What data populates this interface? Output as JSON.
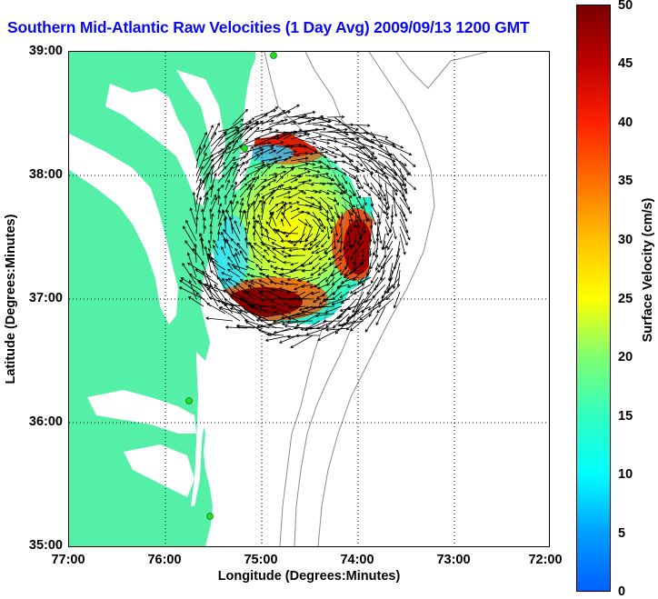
{
  "title": "Southern Mid-Atlantic Raw Velocities (1 Day Avg) 2009/09/13 1200 GMT",
  "xlabel": "Longitude (Degrees:Minutes)",
  "ylabel": "Latitude (Degrees:Minutes)",
  "colorbar": {
    "label": "Surface Velocity (cm/s)",
    "ticks": [
      "0",
      "5",
      "10",
      "15",
      "20",
      "25",
      "30",
      "35",
      "40",
      "45",
      "50"
    ],
    "range": [
      0,
      50
    ]
  },
  "x_ticks": [
    "77:00",
    "76:00",
    "75:00",
    "74:00",
    "73:00",
    "72:00"
  ],
  "y_ticks": [
    "39:00",
    "38:00",
    "37:00",
    "36:00",
    "35:00"
  ],
  "colors": {
    "land": "#55f0a8",
    "title": "#0a0af0",
    "station": "#22dd22",
    "grid": "#000000",
    "bathymetry": "#8c8c8c"
  }
}
